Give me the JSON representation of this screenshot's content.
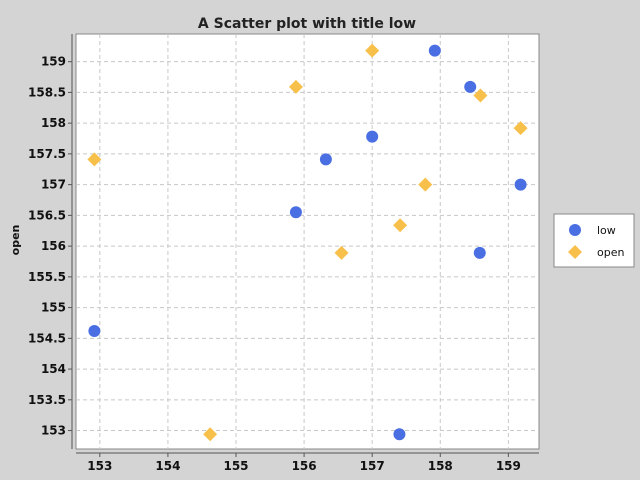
{
  "chart_data": {
    "type": "scatter",
    "title": "A Scatter plot with title low",
    "xlabel": "",
    "ylabel": "open",
    "xlim": [
      152.65,
      159.45
    ],
    "ylim": [
      152.7,
      159.45
    ],
    "x_ticks": [
      153,
      154,
      155,
      156,
      157,
      158,
      159
    ],
    "y_ticks": [
      153,
      153.5,
      154,
      154.5,
      155,
      155.5,
      156,
      156.5,
      157,
      157.5,
      158,
      158.5,
      159
    ],
    "grid": true,
    "legend_position": "right",
    "series": [
      {
        "name": "low",
        "marker": "circle",
        "color": "#4a6fe3",
        "points": [
          {
            "x": 152.92,
            "y": 154.62
          },
          {
            "x": 155.88,
            "y": 156.55
          },
          {
            "x": 156.32,
            "y": 157.41
          },
          {
            "x": 157.0,
            "y": 157.78
          },
          {
            "x": 157.4,
            "y": 152.94
          },
          {
            "x": 157.92,
            "y": 159.18
          },
          {
            "x": 158.44,
            "y": 158.59
          },
          {
            "x": 158.58,
            "y": 155.89
          },
          {
            "x": 159.18,
            "y": 157.0
          }
        ]
      },
      {
        "name": "open",
        "marker": "diamond",
        "color": "#f7c04a",
        "points": [
          {
            "x": 152.92,
            "y": 157.41
          },
          {
            "x": 154.62,
            "y": 152.94
          },
          {
            "x": 155.88,
            "y": 158.59
          },
          {
            "x": 156.55,
            "y": 155.89
          },
          {
            "x": 157.0,
            "y": 159.18
          },
          {
            "x": 157.41,
            "y": 156.34
          },
          {
            "x": 157.78,
            "y": 157.0
          },
          {
            "x": 158.59,
            "y": 158.45
          },
          {
            "x": 159.18,
            "y": 157.92
          }
        ]
      }
    ]
  }
}
